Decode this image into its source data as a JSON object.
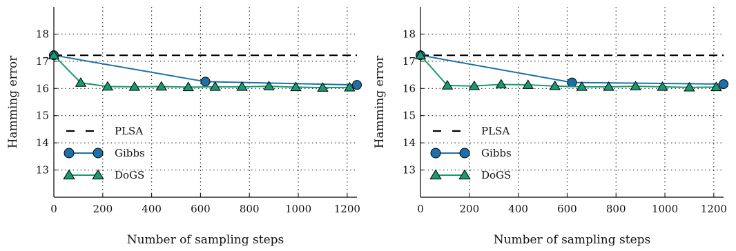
{
  "chart_data": [
    {
      "type": "line",
      "xlabel": "Number of sampling steps",
      "ylabel": "Hamming error",
      "xlim": [
        0,
        1240
      ],
      "ylim": [
        12,
        19
      ],
      "xticks": [
        0,
        200,
        400,
        600,
        800,
        1000,
        1200
      ],
      "yticks": [
        13,
        14,
        15,
        16,
        17,
        18
      ],
      "grid": true,
      "legend_position": "bottom-left",
      "series": [
        {
          "name": "PLSA",
          "style": "dashed",
          "color": "#000000",
          "x": [
            0,
            1240
          ],
          "y": [
            17.22,
            17.22
          ]
        },
        {
          "name": "Gibbs",
          "marker": "circle",
          "color": "#1f6fa8",
          "x": [
            0,
            620,
            1240
          ],
          "y": [
            17.22,
            16.25,
            16.13
          ]
        },
        {
          "name": "DoGS",
          "marker": "triangle",
          "color": "#1a9a73",
          "x": [
            0,
            110,
            220,
            330,
            440,
            550,
            660,
            770,
            880,
            990,
            1100,
            1210
          ],
          "y": [
            17.22,
            16.21,
            16.07,
            16.06,
            16.07,
            16.05,
            16.06,
            16.06,
            16.08,
            16.05,
            16.03,
            16.04
          ]
        }
      ]
    },
    {
      "type": "line",
      "xlabel": "Number of sampling steps",
      "ylabel": "Hamming error",
      "xlim": [
        0,
        1240
      ],
      "ylim": [
        12,
        19
      ],
      "xticks": [
        0,
        200,
        400,
        600,
        800,
        1000,
        1200
      ],
      "yticks": [
        13,
        14,
        15,
        16,
        17,
        18
      ],
      "grid": true,
      "legend_position": "bottom-left",
      "series": [
        {
          "name": "PLSA",
          "style": "dashed",
          "color": "#000000",
          "x": [
            0,
            1240
          ],
          "y": [
            17.22,
            17.22
          ]
        },
        {
          "name": "Gibbs",
          "marker": "circle",
          "color": "#1f6fa8",
          "x": [
            0,
            620,
            1240
          ],
          "y": [
            17.22,
            16.22,
            16.16
          ]
        },
        {
          "name": "DoGS",
          "marker": "triangle",
          "color": "#1a9a73",
          "x": [
            0,
            110,
            220,
            330,
            440,
            550,
            660,
            770,
            880,
            990,
            1100,
            1210
          ],
          "y": [
            17.22,
            16.11,
            16.09,
            16.15,
            16.13,
            16.09,
            16.06,
            16.06,
            16.08,
            16.06,
            16.04,
            16.05
          ]
        }
      ]
    }
  ]
}
